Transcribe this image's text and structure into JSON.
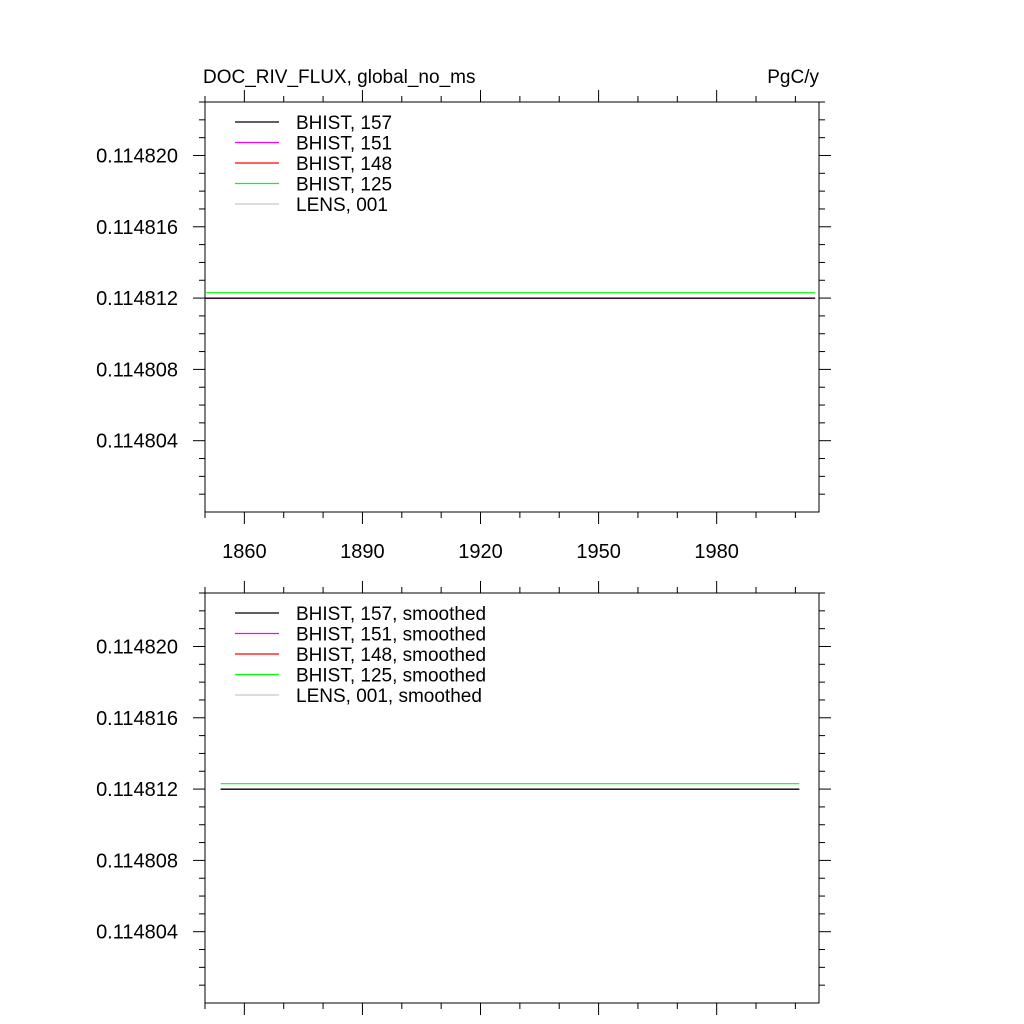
{
  "chart_data": [
    {
      "type": "line",
      "title": "DOC_RIV_FLUX, global_no_ms",
      "units": "PgC/y",
      "xlim": [
        1850,
        2006
      ],
      "ylim": [
        0.1148,
        0.114823
      ],
      "yticks": [
        "0.114804",
        "0.114808",
        "0.114812",
        "0.114816",
        "0.114820"
      ],
      "ytick_values": [
        0.114804,
        0.114808,
        0.114812,
        0.114816,
        0.11482
      ],
      "xticks": [
        "1860",
        "1890",
        "1920",
        "1950",
        "1980"
      ],
      "xtick_values": [
        1860,
        1890,
        1920,
        1950,
        1980
      ],
      "grid": false,
      "legend_position": "top-left",
      "series": [
        {
          "name": "BHIST, 157",
          "color": "#000000",
          "x": [
            1850,
            2005
          ],
          "y": [
            0.114812,
            0.114812
          ]
        },
        {
          "name": "BHIST, 151",
          "color": "#ff00ff",
          "x": [
            1850,
            2005
          ],
          "y": [
            0.114812,
            0.114812
          ]
        },
        {
          "name": "BHIST, 148",
          "color": "#ff0000",
          "x": [
            1850,
            2005
          ],
          "y": [
            0.114812,
            0.114812
          ]
        },
        {
          "name": "BHIST, 125",
          "color": "#00ff00",
          "x": [
            1850,
            2005
          ],
          "y": [
            0.1148123,
            0.1148123
          ]
        },
        {
          "name": "LENS, 001",
          "color": "#c8c8c8",
          "x": [
            1850,
            2005
          ],
          "y": [
            0.114812,
            0.114812
          ]
        }
      ]
    },
    {
      "type": "line",
      "title": "",
      "units": "",
      "xlim": [
        1850,
        2006
      ],
      "ylim": [
        0.1148,
        0.114823
      ],
      "yticks": [
        "0.114804",
        "0.114808",
        "0.114812",
        "0.114816",
        "0.114820"
      ],
      "ytick_values": [
        0.114804,
        0.114808,
        0.114812,
        0.114816,
        0.11482
      ],
      "xticks": [],
      "xtick_values": [
        1860,
        1890,
        1920,
        1950,
        1980
      ],
      "grid": false,
      "legend_position": "top-left",
      "series": [
        {
          "name": "BHIST, 157, smoothed",
          "color": "#000000",
          "x": [
            1854,
            2001
          ],
          "y": [
            0.114812,
            0.114812
          ]
        },
        {
          "name": "BHIST, 151, smoothed",
          "color": "#ff00ff",
          "x": [
            1854,
            2001
          ],
          "y": [
            0.114812,
            0.114812
          ]
        },
        {
          "name": "BHIST, 148, smoothed",
          "color": "#ff0000",
          "x": [
            1854,
            2001
          ],
          "y": [
            0.114812,
            0.114812
          ]
        },
        {
          "name": "BHIST, 125, smoothed",
          "color": "#00ff00",
          "x": [
            1854,
            2001
          ],
          "y": [
            0.1148123,
            0.1148123
          ]
        },
        {
          "name": "LENS, 001, smoothed",
          "color": "#c8c8c8",
          "x": [
            1854,
            2001
          ],
          "y": [
            0.114812,
            0.114812
          ]
        }
      ]
    }
  ]
}
